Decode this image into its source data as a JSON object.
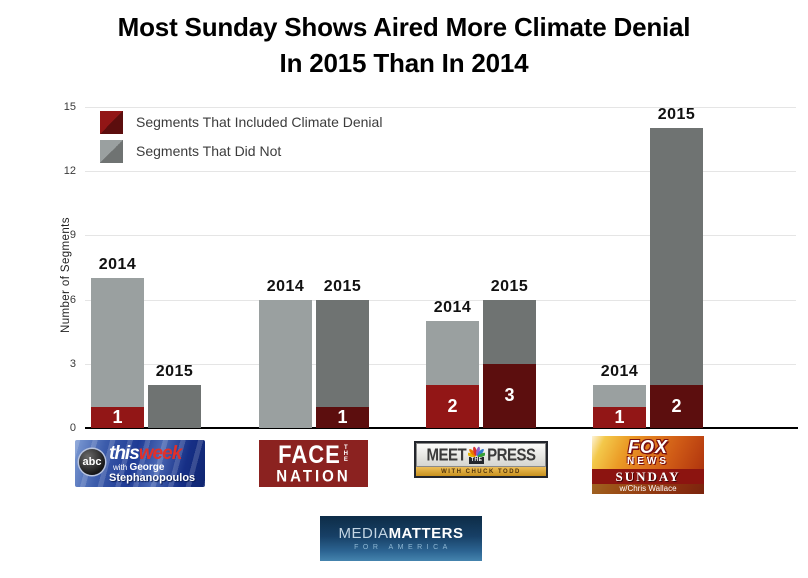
{
  "title": {
    "line1": "Most Sunday Shows Aired More Climate Denial",
    "line2": "In 2015 Than In 2014"
  },
  "colors": {
    "denial_2014": "#921616",
    "denial_2015": "#5c0e0e",
    "no_denial_2014": "#9aa0a0",
    "no_denial_2015": "#6f7372",
    "grid": "#e5e5e5",
    "axis": "#000000",
    "bar_value_label": "#ffffff"
  },
  "legend": {
    "items": [
      {
        "label": "Segments That Included Climate Denial"
      },
      {
        "label": "Segments That Did Not"
      }
    ]
  },
  "y_axis": {
    "title": "Number of Segments"
  },
  "chart_data": {
    "type": "bar",
    "stacked": true,
    "title": "Most Sunday Shows Aired More Climate Denial In 2015 Than In 2014",
    "ylabel": "Number of Segments",
    "ylim": [
      0,
      15
    ],
    "yticks": [
      0,
      3,
      6,
      9,
      12,
      15
    ],
    "grid": true,
    "legend_position": "top-left",
    "series_names": [
      "Segments That Included Climate Denial",
      "Segments That Did Not"
    ],
    "groups": [
      {
        "show": "ABC This Week with George Stephanopoulos",
        "bars": [
          {
            "year": "2014",
            "denial": 1,
            "no_denial": 6,
            "total": 7,
            "denial_label": "1"
          },
          {
            "year": "2015",
            "denial": 0,
            "no_denial": 2,
            "total": 2,
            "denial_label": ""
          }
        ]
      },
      {
        "show": "Face the Nation",
        "bars": [
          {
            "year": "2014",
            "denial": 0,
            "no_denial": 6,
            "total": 6,
            "denial_label": ""
          },
          {
            "year": "2015",
            "denial": 1,
            "no_denial": 5,
            "total": 6,
            "denial_label": "1"
          }
        ]
      },
      {
        "show": "Meet the Press with Chuck Todd",
        "bars": [
          {
            "year": "2014",
            "denial": 2,
            "no_denial": 3,
            "total": 5,
            "denial_label": "2"
          },
          {
            "year": "2015",
            "denial": 3,
            "no_denial": 3,
            "total": 6,
            "denial_label": "3"
          }
        ]
      },
      {
        "show": "Fox News Sunday w/Chris Wallace",
        "bars": [
          {
            "year": "2014",
            "denial": 1,
            "no_denial": 1,
            "total": 2,
            "denial_label": "1"
          },
          {
            "year": "2015",
            "denial": 2,
            "no_denial": 12,
            "total": 14,
            "denial_label": "2"
          }
        ]
      }
    ]
  },
  "logos": {
    "abc": {
      "network": "abc",
      "word1": "this",
      "word2": "week",
      "sub1_prefix": "with",
      "sub1_name": "George",
      "sub2": "Stephanopoulos"
    },
    "face_nation": {
      "word1": "FACE",
      "the": "THE",
      "word2": "NATION"
    },
    "meet_press": {
      "word1": "MEET",
      "the": "THE",
      "word2": "PRESS",
      "sub": "WITH CHUCK TODD"
    },
    "fox": {
      "word1": "FOX",
      "word2": "NEWS",
      "word3": "SUNDAY",
      "sub": "w/Chris Wallace"
    },
    "mmfa": {
      "word1": "MEDIA",
      "word2": "MATTERS",
      "sub": "FOR AMERICA"
    }
  }
}
